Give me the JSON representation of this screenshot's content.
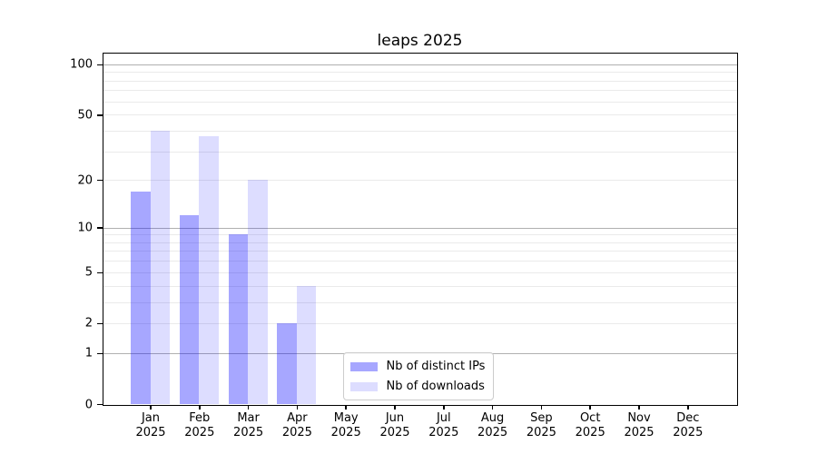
{
  "title": "leaps 2025",
  "legend": {
    "items": [
      {
        "label": "Nb of distinct IPs",
        "color": "rgba(0,0,255,0.345)"
      },
      {
        "label": "Nb of downloads",
        "color": "rgba(0,0,255,0.135)"
      }
    ]
  },
  "chart_data": {
    "type": "bar",
    "title": "leaps 2025",
    "categories": [
      "Jan",
      "Feb",
      "Mar",
      "Apr",
      "May",
      "Jun",
      "Jul",
      "Aug",
      "Sep",
      "Oct",
      "Nov",
      "Dec"
    ],
    "category_year_line": "2025",
    "series": [
      {
        "name": "Nb of distinct IPs",
        "color": "rgba(0,0,255,0.345)",
        "values": [
          17,
          12,
          9,
          2,
          0,
          0,
          0,
          0,
          0,
          0,
          0,
          0
        ]
      },
      {
        "name": "Nb of downloads",
        "color": "rgba(0,0,255,0.135)",
        "values": [
          40,
          37,
          20,
          4,
          0,
          0,
          0,
          0,
          0,
          0,
          0,
          0
        ]
      }
    ],
    "xlabel": "",
    "ylabel": "",
    "yscale": "log1p",
    "ylim": [
      0,
      116
    ],
    "yticks": [
      100,
      50,
      20,
      10,
      5,
      2,
      1,
      0
    ],
    "ytick_labels": [
      "100",
      "50",
      "20",
      "10",
      "5",
      "2",
      "1",
      "0"
    ],
    "grid": {
      "on": true,
      "major_values": [
        1,
        10,
        100
      ],
      "minor_values": [
        2,
        3,
        4,
        5,
        6,
        7,
        8,
        9,
        20,
        30,
        40,
        50,
        60,
        70,
        80,
        90
      ],
      "minor_color": "#eaeaea",
      "major_color": "#b0b0b0"
    },
    "legend_position": "lower center"
  }
}
